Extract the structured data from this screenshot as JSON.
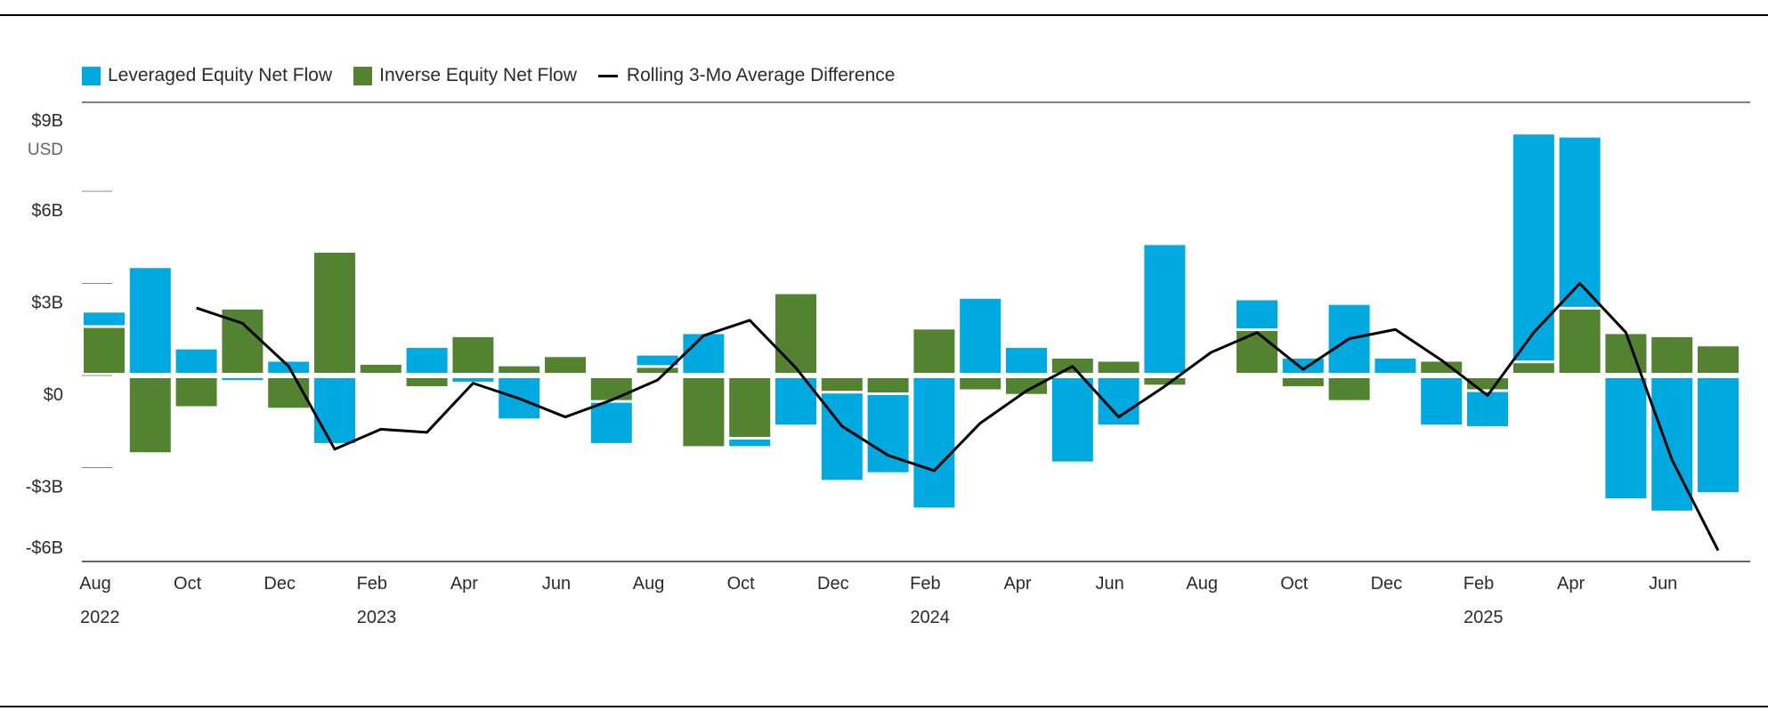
{
  "chart_data": {
    "type": "bar",
    "y_unit_label": "USD",
    "ylim": [
      -6,
      9
    ],
    "y_ticks": [
      {
        "value": 9,
        "label": "$9B"
      },
      {
        "value": 6,
        "label": "$6B"
      },
      {
        "value": 3,
        "label": "$3B"
      },
      {
        "value": 0,
        "label": "$0"
      },
      {
        "value": -3,
        "label": "-$3B"
      },
      {
        "value": -6,
        "label": "-$6B"
      }
    ],
    "months": [
      "2022-08",
      "2022-09",
      "2022-10",
      "2022-11",
      "2022-12",
      "2023-01",
      "2023-02",
      "2023-03",
      "2023-04",
      "2023-05",
      "2023-06",
      "2023-07",
      "2023-08",
      "2023-09",
      "2023-10",
      "2023-11",
      "2023-12",
      "2024-01",
      "2024-02",
      "2024-03",
      "2024-04",
      "2024-05",
      "2024-06",
      "2024-07",
      "2024-08",
      "2024-09",
      "2024-10",
      "2024-11",
      "2024-12",
      "2025-01",
      "2025-02",
      "2025-03",
      "2025-04",
      "2025-05",
      "2025-06",
      "2025-07"
    ],
    "x_tick_labels": [
      {
        "month": "2022-08",
        "label": "Aug"
      },
      {
        "month": "2022-10",
        "label": "Oct"
      },
      {
        "month": "2022-12",
        "label": "Dec"
      },
      {
        "month": "2023-02",
        "label": "Feb"
      },
      {
        "month": "2023-04",
        "label": "Apr"
      },
      {
        "month": "2023-06",
        "label": "Jun"
      },
      {
        "month": "2023-08",
        "label": "Aug"
      },
      {
        "month": "2023-10",
        "label": "Oct"
      },
      {
        "month": "2023-12",
        "label": "Dec"
      },
      {
        "month": "2024-02",
        "label": "Feb"
      },
      {
        "month": "2024-04",
        "label": "Apr"
      },
      {
        "month": "2024-06",
        "label": "Jun"
      },
      {
        "month": "2024-08",
        "label": "Aug"
      },
      {
        "month": "2024-10",
        "label": "Oct"
      },
      {
        "month": "2024-12",
        "label": "Dec"
      },
      {
        "month": "2025-02",
        "label": "Feb"
      },
      {
        "month": "2025-04",
        "label": "Apr"
      },
      {
        "month": "2025-06",
        "label": "Jun"
      }
    ],
    "x_year_labels": [
      {
        "month": "2022-08",
        "label": "2022"
      },
      {
        "month": "2023-02",
        "label": "2023"
      },
      {
        "month": "2024-02",
        "label": "2024"
      },
      {
        "month": "2025-02",
        "label": "2025"
      }
    ],
    "series": [
      {
        "name": "Leveraged Equity Net Flow",
        "kind": "bar",
        "color": "#00a9e0",
        "values": [
          0.5,
          3.5,
          0.85,
          -0.15,
          0.45,
          -2.2,
          0.0,
          0.9,
          -0.2,
          -1.4,
          0.0,
          -1.4,
          0.4,
          1.35,
          -0.3,
          -1.6,
          -2.9,
          -2.6,
          -4.3,
          2.5,
          0.9,
          -2.8,
          -1.6,
          4.25,
          0.0,
          1.0,
          0.55,
          2.3,
          0.55,
          -1.6,
          -1.2,
          7.45,
          5.6,
          -4.0,
          -4.4,
          -3.8
        ]
      },
      {
        "name": "Inverse Equity Net Flow",
        "kind": "bar",
        "color": "#538231",
        "values": [
          1.55,
          -2.5,
          -1.0,
          2.15,
          -1.05,
          4.0,
          0.35,
          -0.35,
          1.25,
          0.3,
          0.6,
          -0.8,
          0.25,
          -2.3,
          -2.0,
          2.65,
          -0.5,
          -0.55,
          1.5,
          -0.45,
          -0.6,
          0.55,
          0.45,
          -0.3,
          0.0,
          1.45,
          -0.35,
          -0.8,
          0.0,
          0.45,
          -0.45,
          0.4,
          2.15,
          1.35,
          1.25,
          0.95
        ]
      },
      {
        "name": "Rolling 3-Mo Average Difference",
        "kind": "line",
        "color": "#000000",
        "start_month": "2022-10",
        "values": [
          2.2,
          1.7,
          0.3,
          -2.4,
          -1.75,
          -1.85,
          -0.25,
          -0.75,
          -1.35,
          -0.8,
          -0.15,
          1.3,
          1.8,
          0.25,
          -1.65,
          -2.6,
          -3.1,
          -1.55,
          -0.5,
          0.3,
          -1.35,
          -0.35,
          0.75,
          1.4,
          0.2,
          1.2,
          1.5,
          0.5,
          -0.65,
          1.4,
          3.0,
          1.4,
          -2.75,
          -5.7
        ]
      }
    ],
    "grid": "horizontal",
    "legend_position": "top-left"
  }
}
